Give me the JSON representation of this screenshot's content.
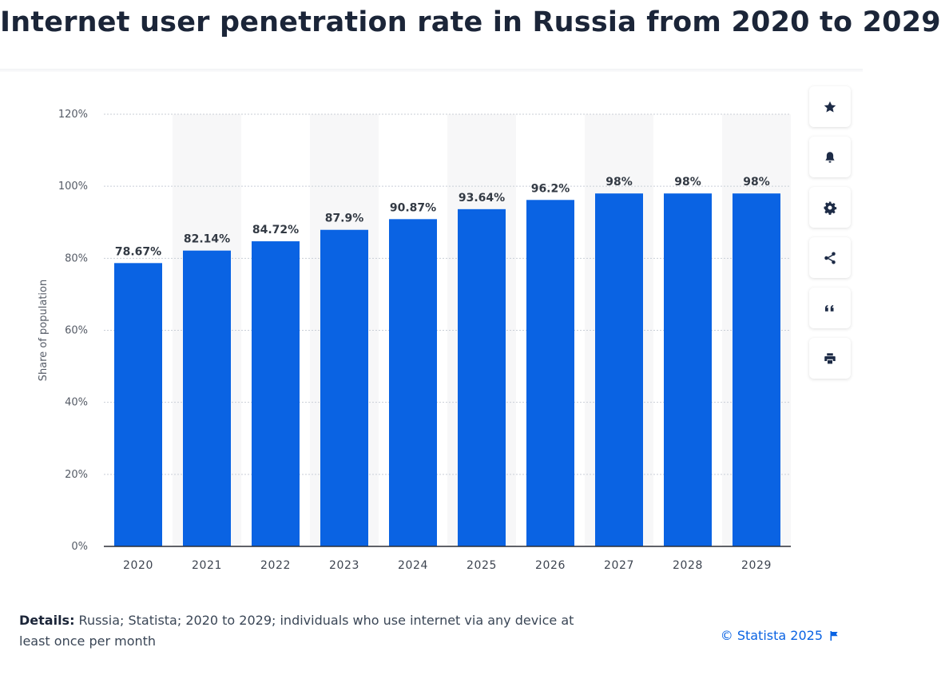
{
  "page": {
    "title": "Internet user penetration rate in Russia from 2020 to 2029"
  },
  "toolbar": {
    "buttons": [
      {
        "icon": "star-icon"
      },
      {
        "icon": "bell-icon"
      },
      {
        "icon": "gear-icon"
      },
      {
        "icon": "share-icon"
      },
      {
        "icon": "quote-icon"
      },
      {
        "icon": "print-icon"
      }
    ]
  },
  "details": {
    "label": "Details:",
    "text": " Russia; Statista; 2020 to 2029; individuals who use internet via any device at least once per month"
  },
  "credit": {
    "text": "© Statista 2025",
    "icon": "flag-icon"
  },
  "colors": {
    "bar": "#0a63e3",
    "band": "#f7f7f8",
    "grid": "#c9ced6",
    "axis": "#2b2f36"
  },
  "chart_data": {
    "type": "bar",
    "title": "",
    "xlabel": "",
    "ylabel": "Share of population",
    "categories": [
      "2020",
      "2021",
      "2022",
      "2023",
      "2024",
      "2025",
      "2026",
      "2027",
      "2028",
      "2029"
    ],
    "values": [
      78.67,
      82.14,
      84.72,
      87.9,
      90.87,
      93.64,
      96.2,
      98,
      98,
      98
    ],
    "data_labels": [
      "78.67%",
      "82.14%",
      "84.72%",
      "87.9%",
      "90.87%",
      "93.64%",
      "96.2%",
      "98%",
      "98%",
      "98%"
    ],
    "ylim": [
      0,
      120
    ],
    "yticks": [
      0,
      20,
      40,
      60,
      80,
      100,
      120
    ],
    "ytick_labels": [
      "0%",
      "20%",
      "40%",
      "60%",
      "80%",
      "100%",
      "120%"
    ],
    "grid": true,
    "legend": "none"
  }
}
